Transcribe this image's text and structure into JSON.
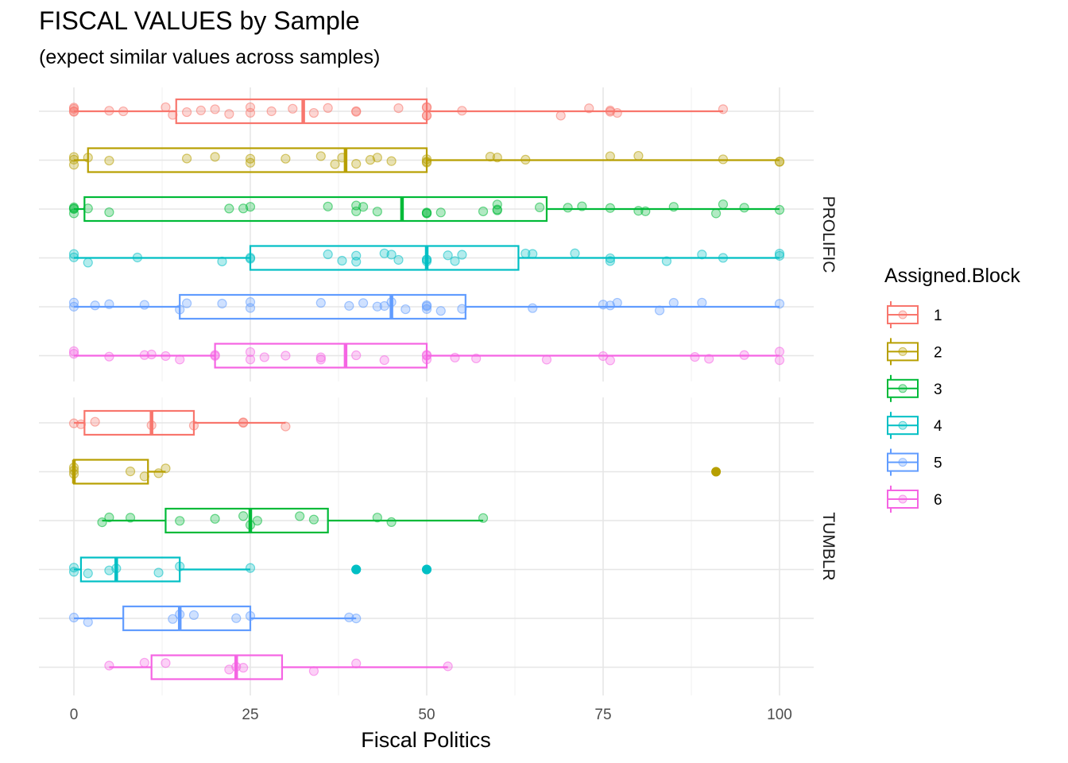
{
  "title": "FISCAL VALUES by Sample",
  "subtitle": "(expect similar values across samples)",
  "chart_data": {
    "type": "boxplot",
    "xlabel": "Fiscal Politics",
    "xlim": [
      -5,
      105
    ],
    "x_ticks": [
      "0",
      "25",
      "50",
      "75",
      "100"
    ],
    "x_tick_values": [
      0,
      25,
      50,
      75,
      100
    ],
    "grid": true,
    "legend_position": "right",
    "legend": {
      "title": "Assigned.Block",
      "entries": [
        {
          "label": "1",
          "color": "#F8766D"
        },
        {
          "label": "2",
          "color": "#B79F00"
        },
        {
          "label": "3",
          "color": "#00BA38"
        },
        {
          "label": "4",
          "color": "#00BFC4"
        },
        {
          "label": "5",
          "color": "#619CFF"
        },
        {
          "label": "6",
          "color": "#F564E3"
        }
      ]
    },
    "panels": [
      {
        "name": "PROLIFIC",
        "boxes": [
          {
            "block": "1",
            "min": 0,
            "q1": 14.5,
            "median": 32.5,
            "q3": 50,
            "max": 92,
            "outliers": [],
            "points": [
              0,
              0,
              0,
              0,
              5,
              7,
              13,
              14,
              16,
              18,
              20,
              22,
              25,
              25,
              28,
              31,
              34,
              36,
              40,
              40,
              46,
              50,
              50,
              50,
              50,
              55,
              69,
              73,
              76,
              76,
              77,
              92
            ]
          },
          {
            "block": "2",
            "min": 0,
            "q1": 2,
            "median": 38.5,
            "q3": 50,
            "max": 100,
            "outliers": [],
            "points": [
              0,
              0,
              0,
              2,
              5,
              16,
              20,
              25,
              25,
              30,
              35,
              37,
              38,
              40,
              42,
              43,
              45,
              50,
              50,
              50,
              59,
              60,
              64,
              76,
              80,
              92,
              100,
              100
            ]
          },
          {
            "block": "3",
            "min": 0,
            "q1": 1.5,
            "median": 46.5,
            "q3": 67,
            "max": 100,
            "outliers": [],
            "points": [
              0,
              0,
              0,
              0,
              2,
              5,
              22,
              24,
              25,
              36,
              40,
              40,
              41,
              43,
              50,
              50,
              50,
              52,
              58,
              60,
              60,
              60,
              66,
              70,
              72,
              76,
              80,
              81,
              85,
              91,
              92,
              95,
              100
            ]
          },
          {
            "block": "4",
            "min": 0,
            "q1": 25,
            "median": 50,
            "q3": 63,
            "max": 100,
            "outliers": [],
            "points": [
              0,
              0,
              2,
              9,
              21,
              25,
              25,
              36,
              38,
              40,
              40,
              44,
              45,
              46,
              50,
              50,
              50,
              53,
              54,
              55,
              64,
              65,
              71,
              76,
              76,
              84,
              89,
              92,
              100,
              100
            ]
          },
          {
            "block": "5",
            "min": 0,
            "q1": 15,
            "median": 45,
            "q3": 55.5,
            "max": 100,
            "outliers": [],
            "points": [
              0,
              0,
              3,
              5,
              10,
              15,
              16,
              21,
              25,
              25,
              35,
              39,
              41,
              43,
              44,
              45,
              47,
              50,
              50,
              50,
              52,
              55,
              65,
              75,
              76,
              77,
              83,
              85,
              89,
              100
            ]
          },
          {
            "block": "6",
            "min": 0,
            "q1": 20,
            "median": 38.5,
            "q3": 50,
            "max": 100,
            "outliers": [],
            "points": [
              0,
              0,
              5,
              10,
              11,
              13,
              15,
              20,
              20,
              25,
              25,
              27,
              30,
              35,
              35,
              40,
              44,
              50,
              50,
              50,
              54,
              57,
              67,
              75,
              76,
              88,
              90,
              95,
              100,
              100
            ]
          }
        ]
      },
      {
        "name": "TUMBLR",
        "boxes": [
          {
            "block": "1",
            "min": 0,
            "q1": 1.5,
            "median": 11,
            "q3": 17,
            "max": 30,
            "outliers": [],
            "points": [
              0,
              1,
              3,
              11,
              17,
              24,
              24,
              30
            ]
          },
          {
            "block": "2",
            "min": 0,
            "q1": 0,
            "median": 0,
            "q3": 10.5,
            "max": 13,
            "outliers": [
              91
            ],
            "points": [
              0,
              0,
              0,
              8,
              10,
              12,
              13
            ]
          },
          {
            "block": "3",
            "min": 4,
            "q1": 13,
            "median": 25,
            "q3": 36,
            "max": 58,
            "outliers": [],
            "points": [
              4,
              5,
              8,
              15,
              20,
              24,
              25,
              26,
              32,
              34,
              43,
              45,
              58
            ]
          },
          {
            "block": "4",
            "min": 0,
            "q1": 1,
            "median": 6,
            "q3": 15,
            "max": 25,
            "outliers": [
              40,
              40,
              50,
              50
            ],
            "points": [
              0,
              0,
              2,
              5,
              6,
              12,
              15,
              25
            ]
          },
          {
            "block": "5",
            "min": 0,
            "q1": 7,
            "median": 15,
            "q3": 25,
            "max": 40,
            "outliers": [],
            "points": [
              0,
              2,
              14,
              15,
              17,
              23,
              25,
              39,
              40
            ]
          },
          {
            "block": "6",
            "min": 5,
            "q1": 11,
            "median": 23,
            "q3": 29.5,
            "max": 53,
            "outliers": [],
            "points": [
              5,
              10,
              13,
              22,
              23,
              24,
              34,
              40,
              53
            ]
          }
        ]
      }
    ]
  }
}
